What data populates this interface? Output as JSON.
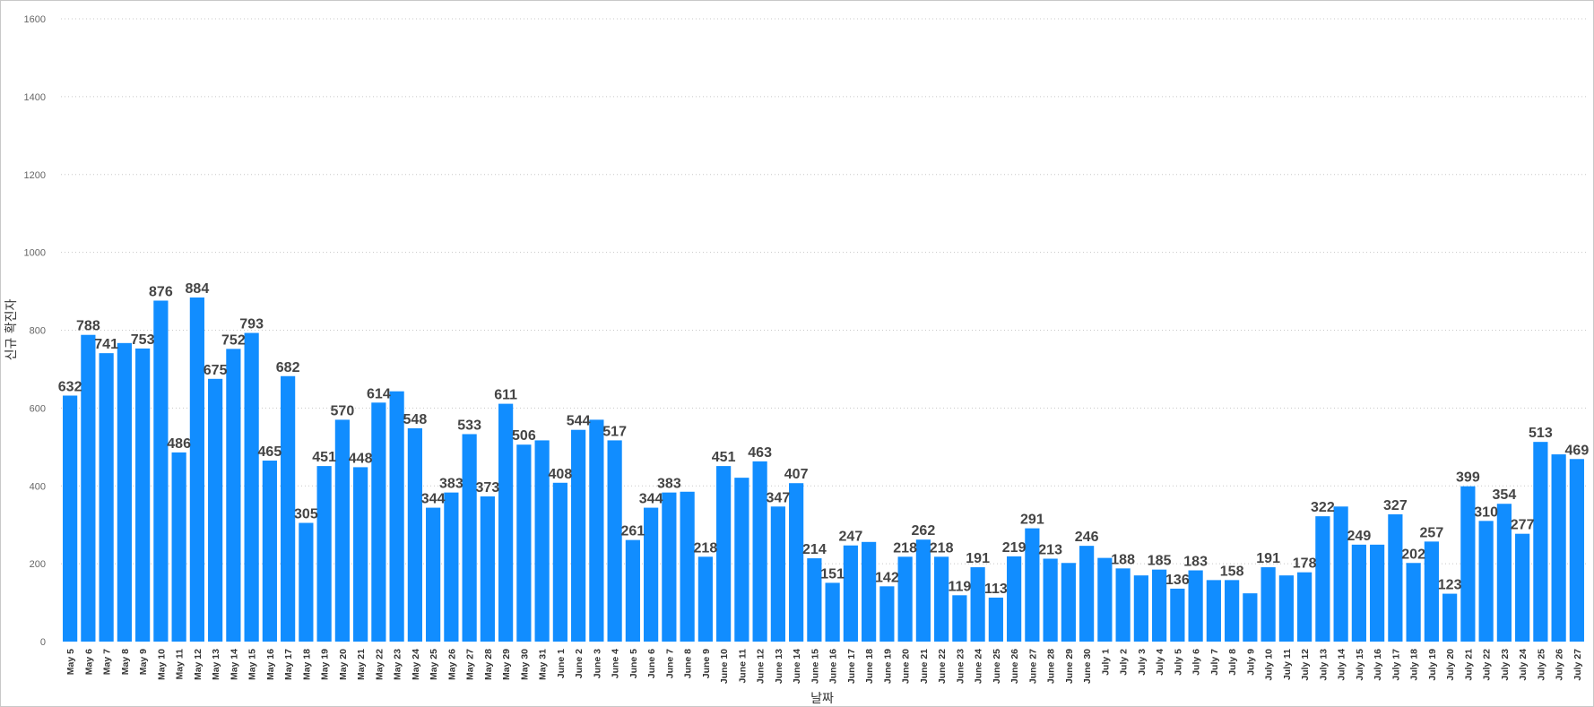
{
  "chart_data": {
    "type": "bar",
    "xlabel": "날짜",
    "ylabel": "신규 확진자",
    "ylim": [
      0,
      1600
    ],
    "yticks": [
      0,
      200,
      400,
      600,
      800,
      1000,
      1200,
      1400,
      1600
    ],
    "grid": true,
    "bar_color": "#118DFF",
    "categories": [
      "May 5",
      "May 6",
      "May 7",
      "May 8",
      "May 9",
      "May 10",
      "May 11",
      "May 12",
      "May 13",
      "May 14",
      "May 15",
      "May 16",
      "May 17",
      "May 18",
      "May 19",
      "May 20",
      "May 21",
      "May 22",
      "May 23",
      "May 24",
      "May 25",
      "May 26",
      "May 27",
      "May 28",
      "May 29",
      "May 30",
      "May 31",
      "June 1",
      "June 2",
      "June 3",
      "June 4",
      "June 5",
      "June 6",
      "June 7",
      "June 8",
      "June 9",
      "June 10",
      "June 11",
      "June 12",
      "June 13",
      "June 14",
      "June 15",
      "June 16",
      "June 17",
      "June 18",
      "June 19",
      "June 20",
      "June 21",
      "June 22",
      "June 23",
      "June 24",
      "June 25",
      "June 26",
      "June 27",
      "June 28",
      "June 29",
      "June 30",
      "July 1",
      "July 2",
      "July 3",
      "July 4",
      "July 5",
      "July 6",
      "July 7",
      "July 8",
      "July 9",
      "July 10",
      "July 11",
      "July 12",
      "July 13",
      "July 14",
      "July 15",
      "July 16",
      "July 17",
      "July 18",
      "July 19",
      "July 20",
      "July 21",
      "July 22",
      "July 23",
      "July 24",
      "July 25",
      "July 26",
      "July 27"
    ],
    "values": [
      632,
      788,
      741,
      767,
      753,
      876,
      486,
      884,
      675,
      752,
      793,
      465,
      682,
      305,
      451,
      570,
      448,
      614,
      643,
      548,
      344,
      383,
      533,
      373,
      611,
      506,
      517,
      408,
      544,
      570,
      517,
      261,
      344,
      383,
      385,
      218,
      451,
      421,
      463,
      347,
      407,
      214,
      151,
      247,
      256,
      142,
      218,
      262,
      218,
      119,
      191,
      113,
      219,
      291,
      213,
      202,
      246,
      215,
      188,
      170,
      185,
      136,
      183,
      158,
      158,
      124,
      191,
      170,
      178,
      322,
      347,
      249,
      249,
      327,
      202,
      257,
      123,
      399,
      310,
      354,
      277,
      513,
      481,
      469
    ],
    "data_labels": [
      "632",
      "788",
      "741",
      "",
      "753",
      "876",
      "486",
      "884",
      "675",
      "752",
      "793",
      "465",
      "682",
      "305",
      "451",
      "570",
      "448",
      "614",
      "",
      "548",
      "344",
      "383",
      "533",
      "373",
      "611",
      "506",
      "",
      "408",
      "544",
      "",
      "517",
      "261",
      "344",
      "383",
      "",
      "218",
      "451",
      "",
      "463",
      "347",
      "407",
      "214",
      "151",
      "247",
      "",
      "142",
      "218",
      "262",
      "218",
      "119",
      "191",
      "113",
      "219",
      "291",
      "213",
      "",
      "246",
      "",
      "188",
      "",
      "185",
      "136",
      "183",
      "",
      "158",
      "",
      "191",
      "",
      "178",
      "322",
      "",
      "249",
      "",
      "327",
      "202",
      "257",
      "123",
      "399",
      "310",
      "354",
      "277",
      "513",
      "",
      "469"
    ]
  }
}
